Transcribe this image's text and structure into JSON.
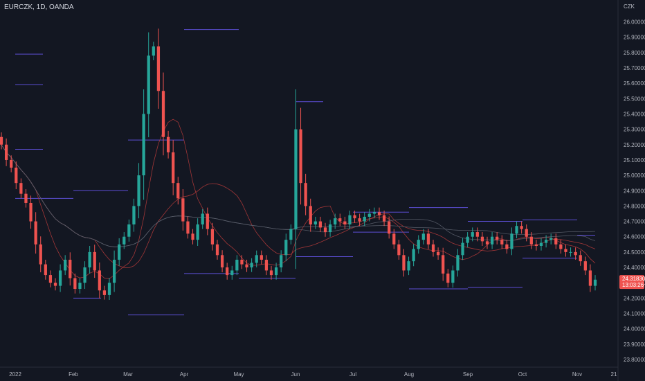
{
  "header": {
    "symbol": "EURCZK, 1D, OANDA",
    "currency": "CZK"
  },
  "colors": {
    "up": "#26a69a",
    "down": "#ef5350",
    "level": "#5d4fd6",
    "ma_red": "#b23a3a",
    "ma_grey": "#5a5e6a",
    "bg": "#131722"
  },
  "current": {
    "price": "24.31830",
    "timer": "13:03:26"
  },
  "chart_data": {
    "type": "candlestick",
    "y_axis": {
      "range": [
        23.75,
        26.12
      ],
      "labels": [
        "26.00000",
        "25.90000",
        "25.80000",
        "25.70000",
        "25.60000",
        "25.50000",
        "25.40000",
        "25.30000",
        "25.20000",
        "25.10000",
        "25.00000",
        "24.90000",
        "24.80000",
        "24.70000",
        "24.60000",
        "24.50000",
        "24.40000",
        "24.30000",
        "24.20000",
        "24.10000",
        "24.00000",
        "23.90000",
        "23.80000"
      ]
    },
    "x_axis": {
      "labels": [
        "2022",
        "Feb",
        "Mar",
        "Apr",
        "May",
        "Jun",
        "Jul",
        "Aug",
        "Sep",
        "Oct",
        "Nov",
        "21"
      ]
    },
    "close_series": [
      25.2,
      25.1,
      25.05,
      24.95,
      24.88,
      24.82,
      24.7,
      24.55,
      24.42,
      24.35,
      24.3,
      24.28,
      24.38,
      24.45,
      24.33,
      24.26,
      24.3,
      24.4,
      24.5,
      24.38,
      24.25,
      24.22,
      24.3,
      24.45,
      24.55,
      24.6,
      24.68,
      24.8,
      25.0,
      25.4,
      25.78,
      25.84,
      25.55,
      25.25,
      25.15,
      24.95,
      24.85,
      24.7,
      24.62,
      24.58,
      24.68,
      24.75,
      24.65,
      24.55,
      24.48,
      24.4,
      24.35,
      24.38,
      24.45,
      24.42,
      24.4,
      24.43,
      24.48,
      24.45,
      24.38,
      24.35,
      24.4,
      24.48,
      24.58,
      24.65,
      25.3,
      24.95,
      24.8,
      24.68,
      24.7,
      24.66,
      24.63,
      24.68,
      24.72,
      24.7,
      24.68,
      24.74,
      24.72,
      24.7,
      24.73,
      24.75,
      24.76,
      24.74,
      24.7,
      24.62,
      24.55,
      24.48,
      24.38,
      24.44,
      24.52,
      24.58,
      24.62,
      24.55,
      24.5,
      24.48,
      24.36,
      24.3,
      24.38,
      24.48,
      24.56,
      24.6,
      24.63,
      24.6,
      24.57,
      24.55,
      24.6,
      24.58,
      24.55,
      24.52,
      24.62,
      24.67,
      24.65,
      24.6,
      24.55,
      24.54,
      24.56,
      24.58,
      24.59,
      24.55,
      24.52,
      24.5,
      24.5,
      24.48,
      24.44,
      24.38,
      24.28,
      24.32
    ],
    "levels": [
      {
        "from": "2022",
        "to": "Jan",
        "price": 25.79
      },
      {
        "from": "2022",
        "to": "Jan",
        "price": 25.17
      },
      {
        "from": "Jan",
        "to": "Jan",
        "price": 25.59
      },
      {
        "from": "Jan",
        "to": "Feb",
        "price": 24.85
      },
      {
        "from": "Feb",
        "to": "Mar",
        "price": 24.9
      },
      {
        "from": "Feb",
        "to": "Feb",
        "price": 24.2
      },
      {
        "from": "Mar",
        "to": "Apr",
        "price": 25.23
      },
      {
        "from": "Mar",
        "to": "Apr",
        "price": 24.09
      },
      {
        "from": "Apr",
        "to": "May",
        "price": 25.95
      },
      {
        "from": "Apr",
        "to": "May",
        "price": 24.36
      },
      {
        "from": "May",
        "to": "Jun",
        "price": 24.33
      },
      {
        "from": "Jun",
        "to": "Jun",
        "price": 25.48
      },
      {
        "from": "Jun",
        "to": "Jul",
        "price": 24.47
      },
      {
        "from": "Jul",
        "to": "Aug",
        "price": 24.76
      },
      {
        "from": "Jul",
        "to": "Aug",
        "price": 24.63
      },
      {
        "from": "Aug",
        "to": "Sep",
        "price": 24.79
      },
      {
        "from": "Aug",
        "to": "Sep",
        "price": 24.26
      },
      {
        "from": "Sep",
        "to": "Oct",
        "price": 24.7
      },
      {
        "from": "Sep",
        "to": "Oct",
        "price": 24.27
      },
      {
        "from": "Oct",
        "to": "Nov",
        "price": 24.71
      },
      {
        "from": "Oct",
        "to": "Nov",
        "price": 24.46
      },
      {
        "from": "Nov",
        "to": "Nov",
        "price": 24.61
      }
    ]
  }
}
